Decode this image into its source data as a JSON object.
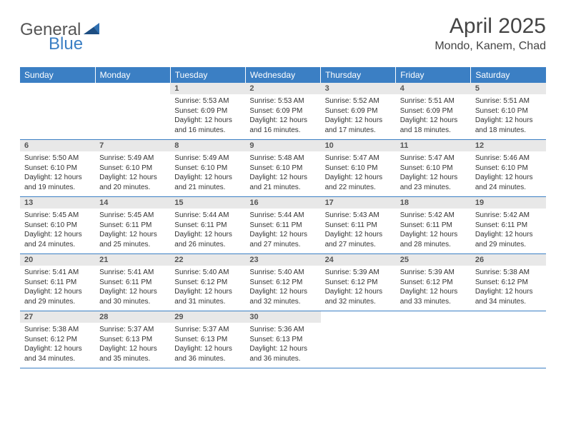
{
  "logo": {
    "general": "General",
    "blue": "Blue"
  },
  "title": "April 2025",
  "location": "Mondo, Kanem, Chad",
  "colors": {
    "header_bg": "#3b7fc4",
    "header_text": "#ffffff",
    "daynum_bg": "#e8e8e8",
    "row_border": "#3b7fc4",
    "page_bg": "#ffffff"
  },
  "fonts": {
    "title_size": 30,
    "location_size": 16,
    "th_size": 12,
    "daynum_size": 11,
    "cell_size": 10
  },
  "weekdays": [
    "Sunday",
    "Monday",
    "Tuesday",
    "Wednesday",
    "Thursday",
    "Friday",
    "Saturday"
  ],
  "weeks": [
    [
      {
        "n": "",
        "sr": "",
        "ss": "",
        "dl": ""
      },
      {
        "n": "",
        "sr": "",
        "ss": "",
        "dl": ""
      },
      {
        "n": "1",
        "sr": "Sunrise: 5:53 AM",
        "ss": "Sunset: 6:09 PM",
        "dl": "Daylight: 12 hours and 16 minutes."
      },
      {
        "n": "2",
        "sr": "Sunrise: 5:53 AM",
        "ss": "Sunset: 6:09 PM",
        "dl": "Daylight: 12 hours and 16 minutes."
      },
      {
        "n": "3",
        "sr": "Sunrise: 5:52 AM",
        "ss": "Sunset: 6:09 PM",
        "dl": "Daylight: 12 hours and 17 minutes."
      },
      {
        "n": "4",
        "sr": "Sunrise: 5:51 AM",
        "ss": "Sunset: 6:09 PM",
        "dl": "Daylight: 12 hours and 18 minutes."
      },
      {
        "n": "5",
        "sr": "Sunrise: 5:51 AM",
        "ss": "Sunset: 6:10 PM",
        "dl": "Daylight: 12 hours and 18 minutes."
      }
    ],
    [
      {
        "n": "6",
        "sr": "Sunrise: 5:50 AM",
        "ss": "Sunset: 6:10 PM",
        "dl": "Daylight: 12 hours and 19 minutes."
      },
      {
        "n": "7",
        "sr": "Sunrise: 5:49 AM",
        "ss": "Sunset: 6:10 PM",
        "dl": "Daylight: 12 hours and 20 minutes."
      },
      {
        "n": "8",
        "sr": "Sunrise: 5:49 AM",
        "ss": "Sunset: 6:10 PM",
        "dl": "Daylight: 12 hours and 21 minutes."
      },
      {
        "n": "9",
        "sr": "Sunrise: 5:48 AM",
        "ss": "Sunset: 6:10 PM",
        "dl": "Daylight: 12 hours and 21 minutes."
      },
      {
        "n": "10",
        "sr": "Sunrise: 5:47 AM",
        "ss": "Sunset: 6:10 PM",
        "dl": "Daylight: 12 hours and 22 minutes."
      },
      {
        "n": "11",
        "sr": "Sunrise: 5:47 AM",
        "ss": "Sunset: 6:10 PM",
        "dl": "Daylight: 12 hours and 23 minutes."
      },
      {
        "n": "12",
        "sr": "Sunrise: 5:46 AM",
        "ss": "Sunset: 6:10 PM",
        "dl": "Daylight: 12 hours and 24 minutes."
      }
    ],
    [
      {
        "n": "13",
        "sr": "Sunrise: 5:45 AM",
        "ss": "Sunset: 6:10 PM",
        "dl": "Daylight: 12 hours and 24 minutes."
      },
      {
        "n": "14",
        "sr": "Sunrise: 5:45 AM",
        "ss": "Sunset: 6:11 PM",
        "dl": "Daylight: 12 hours and 25 minutes."
      },
      {
        "n": "15",
        "sr": "Sunrise: 5:44 AM",
        "ss": "Sunset: 6:11 PM",
        "dl": "Daylight: 12 hours and 26 minutes."
      },
      {
        "n": "16",
        "sr": "Sunrise: 5:44 AM",
        "ss": "Sunset: 6:11 PM",
        "dl": "Daylight: 12 hours and 27 minutes."
      },
      {
        "n": "17",
        "sr": "Sunrise: 5:43 AM",
        "ss": "Sunset: 6:11 PM",
        "dl": "Daylight: 12 hours and 27 minutes."
      },
      {
        "n": "18",
        "sr": "Sunrise: 5:42 AM",
        "ss": "Sunset: 6:11 PM",
        "dl": "Daylight: 12 hours and 28 minutes."
      },
      {
        "n": "19",
        "sr": "Sunrise: 5:42 AM",
        "ss": "Sunset: 6:11 PM",
        "dl": "Daylight: 12 hours and 29 minutes."
      }
    ],
    [
      {
        "n": "20",
        "sr": "Sunrise: 5:41 AM",
        "ss": "Sunset: 6:11 PM",
        "dl": "Daylight: 12 hours and 29 minutes."
      },
      {
        "n": "21",
        "sr": "Sunrise: 5:41 AM",
        "ss": "Sunset: 6:11 PM",
        "dl": "Daylight: 12 hours and 30 minutes."
      },
      {
        "n": "22",
        "sr": "Sunrise: 5:40 AM",
        "ss": "Sunset: 6:12 PM",
        "dl": "Daylight: 12 hours and 31 minutes."
      },
      {
        "n": "23",
        "sr": "Sunrise: 5:40 AM",
        "ss": "Sunset: 6:12 PM",
        "dl": "Daylight: 12 hours and 32 minutes."
      },
      {
        "n": "24",
        "sr": "Sunrise: 5:39 AM",
        "ss": "Sunset: 6:12 PM",
        "dl": "Daylight: 12 hours and 32 minutes."
      },
      {
        "n": "25",
        "sr": "Sunrise: 5:39 AM",
        "ss": "Sunset: 6:12 PM",
        "dl": "Daylight: 12 hours and 33 minutes."
      },
      {
        "n": "26",
        "sr": "Sunrise: 5:38 AM",
        "ss": "Sunset: 6:12 PM",
        "dl": "Daylight: 12 hours and 34 minutes."
      }
    ],
    [
      {
        "n": "27",
        "sr": "Sunrise: 5:38 AM",
        "ss": "Sunset: 6:12 PM",
        "dl": "Daylight: 12 hours and 34 minutes."
      },
      {
        "n": "28",
        "sr": "Sunrise: 5:37 AM",
        "ss": "Sunset: 6:13 PM",
        "dl": "Daylight: 12 hours and 35 minutes."
      },
      {
        "n": "29",
        "sr": "Sunrise: 5:37 AM",
        "ss": "Sunset: 6:13 PM",
        "dl": "Daylight: 12 hours and 36 minutes."
      },
      {
        "n": "30",
        "sr": "Sunrise: 5:36 AM",
        "ss": "Sunset: 6:13 PM",
        "dl": "Daylight: 12 hours and 36 minutes."
      },
      {
        "n": "",
        "sr": "",
        "ss": "",
        "dl": ""
      },
      {
        "n": "",
        "sr": "",
        "ss": "",
        "dl": ""
      },
      {
        "n": "",
        "sr": "",
        "ss": "",
        "dl": ""
      }
    ]
  ]
}
